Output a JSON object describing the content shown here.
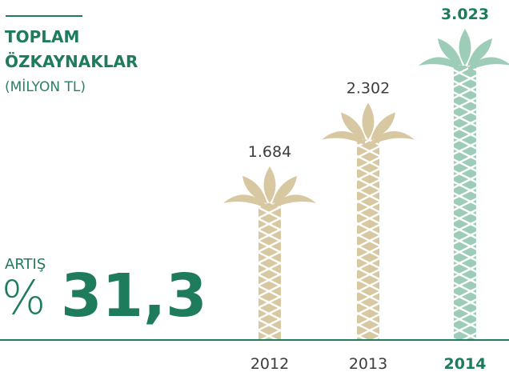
{
  "chart_data": {
    "type": "palm-bar",
    "title_lines": [
      "TOPLAM",
      "ÖZKAYNAKLAR"
    ],
    "subtitle": "(MİLYON TL)",
    "annotation": {
      "label": "ARTIŞ",
      "symbol": "%",
      "value": "31,3"
    },
    "categories": [
      "2012",
      "2013",
      "2014"
    ],
    "values": [
      1684,
      2302,
      3023
    ],
    "value_labels": [
      "1.684",
      "2.302",
      "3.023"
    ],
    "colors": [
      "#d8c8a2",
      "#d8c8a2",
      "#9dccb8"
    ]
  }
}
